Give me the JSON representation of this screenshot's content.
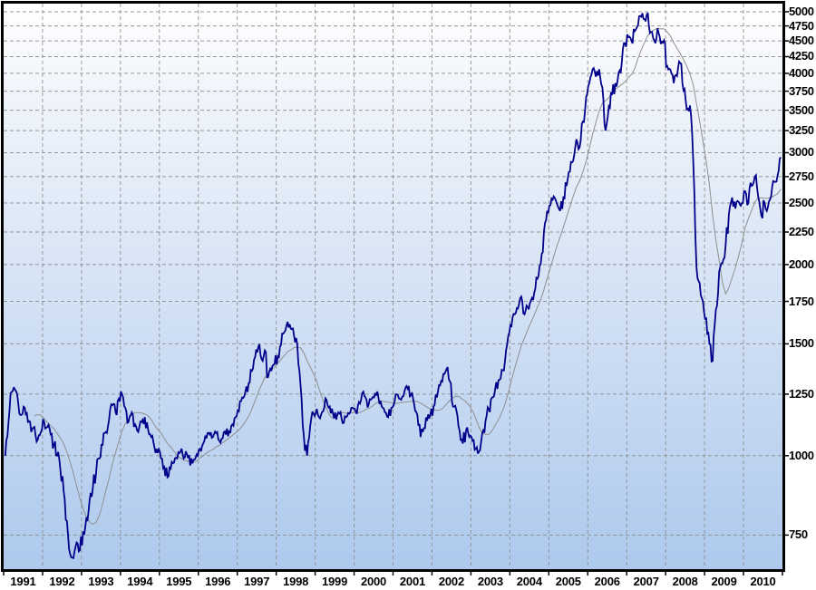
{
  "chart_data": {
    "type": "line",
    "title": "",
    "xlabel": "",
    "ylabel": "",
    "scale_y": "log",
    "grid": "dashed",
    "legend": "none",
    "x_start_year": 1991,
    "x_end_year": 2011,
    "x_tick_labels": [
      "1991",
      "1992",
      "1993",
      "1994",
      "1995",
      "1996",
      "1997",
      "1998",
      "1999",
      "2000",
      "2001",
      "2002",
      "2003",
      "2004",
      "2005",
      "2006",
      "2007",
      "2008",
      "2009",
      "2010"
    ],
    "y_tick_values": [
      750,
      1000,
      1250,
      1500,
      1750,
      2000,
      2250,
      2500,
      2750,
      3000,
      3250,
      3500,
      3750,
      4000,
      4250,
      4500,
      4750,
      5000
    ],
    "y_tick_labels": [
      "750",
      "1000",
      "1250",
      "1500",
      "1750",
      "2000",
      "2250",
      "2500",
      "2750",
      "3000",
      "3250",
      "3500",
      "3750",
      "4000",
      "4250",
      "4500",
      "4750",
      "5000"
    ],
    "ylim": [
      665,
      5150
    ],
    "series": [
      {
        "name": "index-price",
        "color": "#00008a",
        "width": 1.8,
        "sampling": "monthly",
        "monthly_values": [
          1000,
          1130,
          1260,
          1270,
          1210,
          1160,
          1190,
          1130,
          1090,
          1110,
          1060,
          1090,
          1130,
          1110,
          1080,
          1040,
          1000,
          950,
          880,
          790,
          700,
          690,
          730,
          710,
          760,
          800,
          850,
          890,
          940,
          990,
          1040,
          1090,
          1140,
          1200,
          1170,
          1230,
          1250,
          1190,
          1130,
          1170,
          1120,
          1090,
          1130,
          1150,
          1100,
          1070,
          1030,
          1010,
          990,
          960,
          925,
          955,
          975,
          990,
          1015,
          990,
          1005,
          965,
          985,
          1005,
          1025,
          1045,
          1065,
          1080,
          1070,
          1085,
          1055,
          1065,
          1080,
          1095,
          1120,
          1150,
          1175,
          1235,
          1260,
          1300,
          1360,
          1430,
          1485,
          1420,
          1465,
          1330,
          1360,
          1395,
          1435,
          1495,
          1565,
          1625,
          1585,
          1545,
          1495,
          1290,
          1075,
          1000,
          1115,
          1165,
          1185,
          1145,
          1175,
          1225,
          1195,
          1165,
          1140,
          1165,
          1125,
          1150,
          1165,
          1190,
          1175,
          1215,
          1255,
          1235,
          1205,
          1230,
          1255,
          1235,
          1195,
          1170,
          1150,
          1190,
          1220,
          1245,
          1225,
          1260,
          1275,
          1245,
          1205,
          1160,
          1070,
          1105,
          1135,
          1160,
          1195,
          1235,
          1290,
          1345,
          1370,
          1310,
          1195,
          1180,
          1095,
          1045,
          1095,
          1070,
          1055,
          1025,
          1015,
          1085,
          1135,
          1185,
          1235,
          1275,
          1315,
          1365,
          1410,
          1545,
          1600,
          1670,
          1705,
          1780,
          1670,
          1715,
          1755,
          1805,
          1900,
          2005,
          2250,
          2430,
          2480,
          2560,
          2495,
          2430,
          2560,
          2660,
          2800,
          2910,
          3150,
          3060,
          3360,
          3670,
          3860,
          4060,
          3950,
          4060,
          3800,
          3250,
          3550,
          3700,
          3860,
          4010,
          4160,
          4460,
          4560,
          4490,
          4660,
          4760,
          4910,
          4870,
          4980,
          4650,
          4510,
          4710,
          4450,
          4510,
          4110,
          4050,
          3860,
          3960,
          4150,
          3760,
          3510,
          3560,
          2910,
          1980,
          1870,
          1750,
          1650,
          1500,
          1410,
          1700,
          1950,
          2010,
          2150,
          2400,
          2550,
          2450,
          2510,
          2500,
          2610,
          2500,
          2660,
          2750,
          2560,
          2390,
          2500,
          2460,
          2560,
          2700,
          2760,
          2950
        ]
      },
      {
        "name": "moving-average",
        "color": "#8f8f8f",
        "width": 1,
        "derived": "trailing-mean-of-index-price",
        "window_months": 10
      }
    ],
    "style": {
      "plot_bg_gradient_top": "#ffffff",
      "plot_bg_gradient_mid": "#f3f6fb",
      "plot_bg_gradient_bottom": "#adc9ed",
      "grid_color": "#8c8c8c",
      "border_color": "#000000",
      "tick_color": "#000000",
      "label_color": "#000000"
    }
  }
}
